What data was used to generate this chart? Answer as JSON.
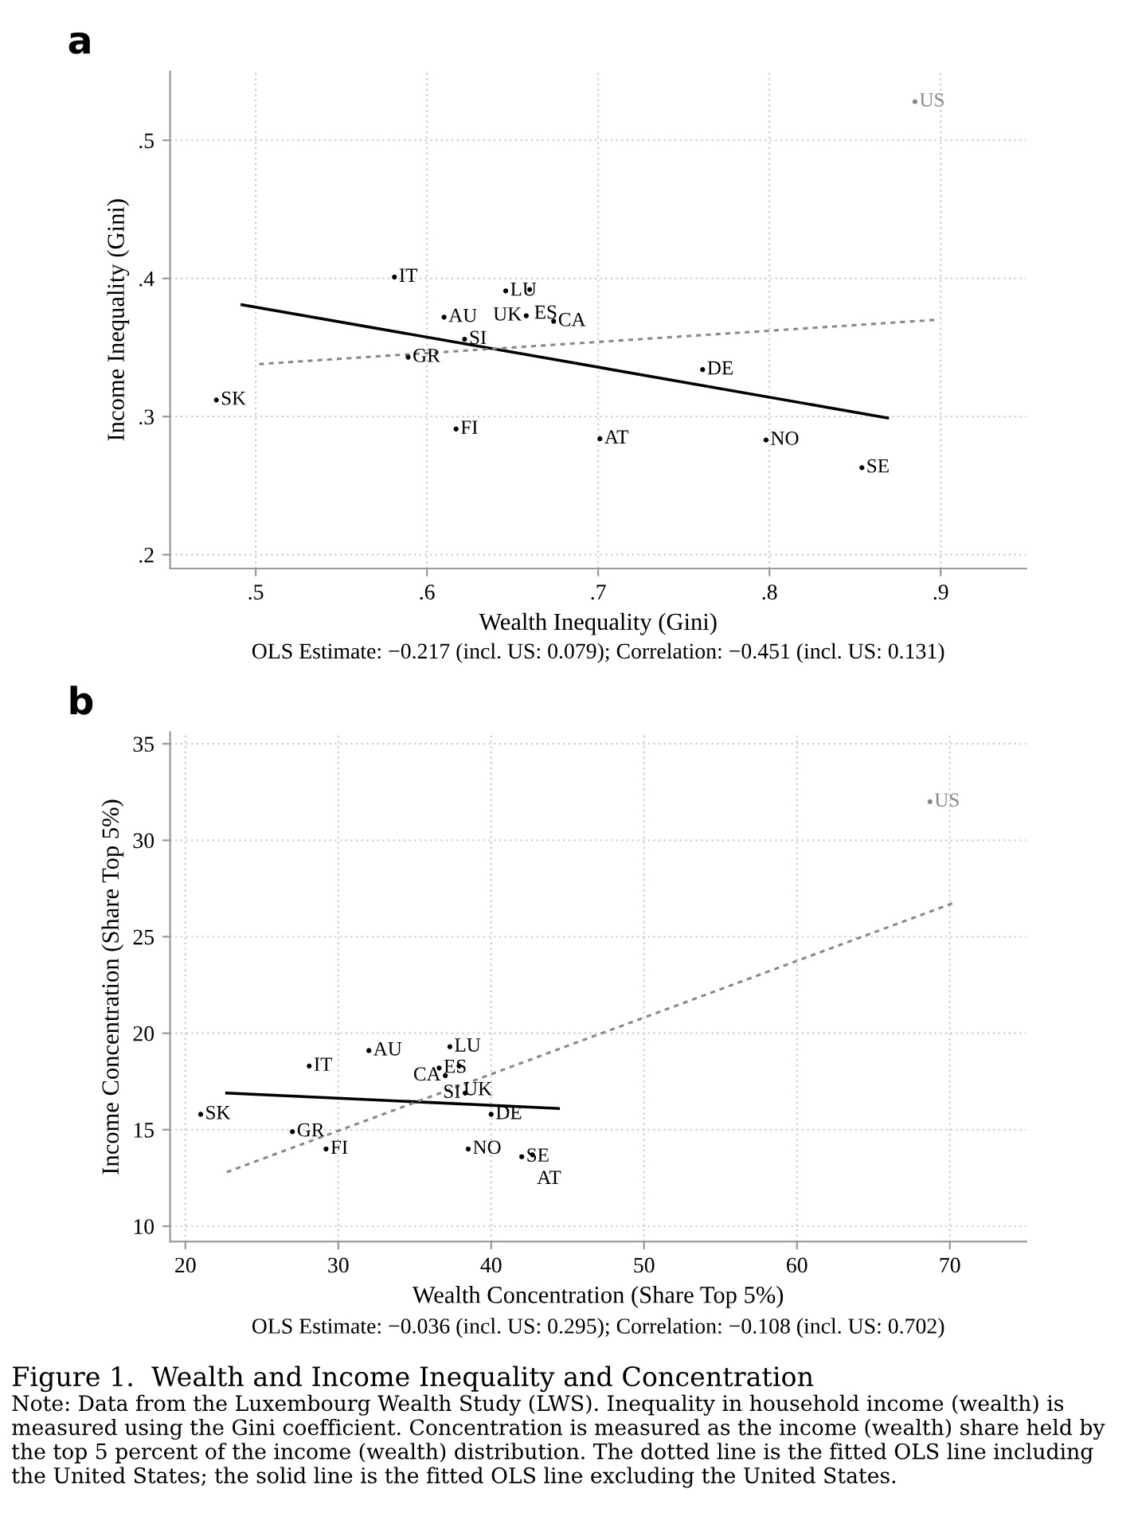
{
  "chart_data": [
    {
      "type": "scatter",
      "title": "a",
      "xlabel": "Wealth Inequality (Gini)",
      "ylabel": "Income Inequality (Gini)",
      "xlim": [
        0.45,
        0.95
      ],
      "ylim": [
        0.19,
        0.55
      ],
      "xticks": [
        {
          "value": 0.5,
          "label": ".5"
        },
        {
          "value": 0.6,
          "label": ".6"
        },
        {
          "value": 0.7,
          "label": ".7"
        },
        {
          "value": 0.8,
          "label": ".8"
        },
        {
          "value": 0.9,
          "label": ".9"
        }
      ],
      "yticks": [
        {
          "value": 0.2,
          "label": ".2"
        },
        {
          "value": 0.3,
          "label": ".3"
        },
        {
          "value": 0.4,
          "label": ".4"
        },
        {
          "value": 0.5,
          "label": ".5"
        }
      ],
      "grid": true,
      "series": [
        {
          "marker": "circle",
          "color": "#000000",
          "x": [
            0.581,
            0.646,
            0.66,
            0.61,
            0.658,
            0.674,
            0.622,
            0.589,
            0.761,
            0.477,
            0.617,
            0.701,
            0.798,
            0.854
          ],
          "values": [
            0.401,
            0.391,
            0.392,
            0.372,
            0.373,
            0.369,
            0.356,
            0.343,
            0.334,
            0.312,
            0.291,
            0.284,
            0.283,
            0.263
          ],
          "value_labels": [
            "IT",
            "LU",
            "ES",
            "AU",
            "UK",
            "CA",
            "SI",
            "GR",
            "DE",
            "SK",
            "FI",
            "AT",
            "NO",
            "SE"
          ]
        },
        {
          "marker": "circle",
          "color": "#888888",
          "x": [
            0.885
          ],
          "values": [
            0.528
          ],
          "value_labels": [
            "US"
          ]
        },
        {
          "type": "line",
          "color": "#000000",
          "line_style": "solid",
          "x": [
            0.492,
            0.869
          ],
          "values": [
            0.381,
            0.299
          ]
        },
        {
          "type": "line",
          "color": "#888888",
          "line_style": "dotted",
          "x": [
            0.502,
            0.897
          ],
          "values": [
            0.338,
            0.37
          ]
        }
      ],
      "annotations": [
        "OLS Estimate: −0.217 (incl. US: 0.079); Correlation: −0.451 (incl. US: 0.131)"
      ]
    },
    {
      "type": "scatter",
      "title": "b",
      "xlabel": "Wealth Concentration (Share Top 5%)",
      "ylabel": "Income Concentration (Share Top 5%)",
      "xlim": [
        19,
        75
      ],
      "ylim": [
        9.2,
        35.6
      ],
      "xticks": [
        20,
        30,
        40,
        50,
        60,
        70
      ],
      "yticks": [
        10,
        15,
        20,
        25,
        30,
        35
      ],
      "grid": true,
      "series": [
        {
          "marker": "circle",
          "color": "#000000",
          "x": [
            28.1,
            32.0,
            37.3,
            36.6,
            37.9,
            37.0,
            38.3,
            21.0,
            40.0,
            27.0,
            29.2,
            38.5,
            42.0,
            42.7
          ],
          "values": [
            18.3,
            19.1,
            19.3,
            18.2,
            18.3,
            17.8,
            16.9,
            15.8,
            15.8,
            14.9,
            14.0,
            14.0,
            13.6,
            13.7
          ],
          "value_labels": [
            "IT",
            "AU",
            "LU",
            "ES",
            "UK",
            "CA",
            "SI",
            "SK",
            "DE",
            "GR",
            "FI",
            "NO",
            "SE",
            "AT"
          ]
        },
        {
          "marker": "circle",
          "color": "#888888",
          "x": [
            68.7
          ],
          "values": [
            32.0
          ],
          "value_labels": [
            "US"
          ]
        },
        {
          "type": "line",
          "color": "#000000",
          "line_style": "solid",
          "x": [
            22.7,
            44.4
          ],
          "values": [
            16.9,
            16.1
          ]
        },
        {
          "type": "line",
          "color": "#888888",
          "line_style": "dotted",
          "x": [
            22.7,
            70.4
          ],
          "values": [
            12.8,
            26.8
          ]
        }
      ],
      "annotations": [
        "OLS Estimate: −0.036 (incl. US: 0.295); Correlation: −0.108 (incl. US: 0.702)",
        "Figure 1.  Wealth and Income Inequality and Concentration",
        "Note: Data from the Luxembourg Wealth Study (LWS). Inequality in household income (wealth) is measured using the Gini coefficient. Concentration is measured as the income (wealth) share held by the top 5 percent of the income (wealth) distribution. The dotted line is the fitted OLS line including the United States; the solid line is the fitted OLS line excluding the United States."
      ]
    }
  ]
}
